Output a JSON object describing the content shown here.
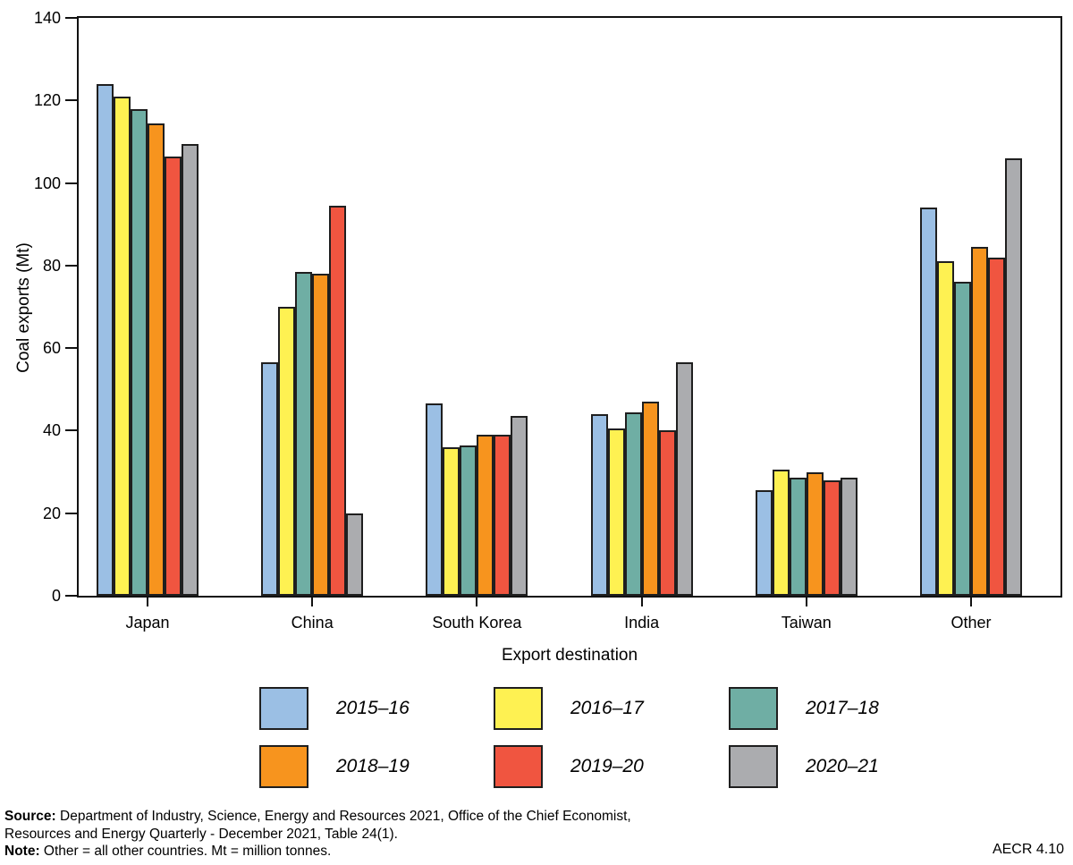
{
  "chart_data": {
    "type": "bar",
    "title": "",
    "xlabel": "Export destination",
    "ylabel": "Coal exports (Mt)",
    "ylim": [
      0,
      140
    ],
    "yticks": [
      0,
      20,
      40,
      60,
      80,
      100,
      120,
      140
    ],
    "grid": false,
    "legend_position": "bottom",
    "categories": [
      "Japan",
      "China",
      "South Korea",
      "India",
      "Taiwan",
      "Other"
    ],
    "series": [
      {
        "name": "2015–16",
        "color": "#9BBFE4",
        "values": [
          124,
          56.5,
          46.5,
          44,
          25.5,
          94
        ]
      },
      {
        "name": "2016–17",
        "color": "#FEF152",
        "values": [
          121,
          70,
          36,
          40.5,
          30.5,
          81
        ]
      },
      {
        "name": "2017–18",
        "color": "#6FAEA4",
        "values": [
          118,
          78.5,
          36.5,
          44.5,
          28.5,
          76
        ]
      },
      {
        "name": "2018–19",
        "color": "#F7941E",
        "values": [
          114.5,
          78,
          39,
          47,
          30,
          84.5
        ]
      },
      {
        "name": "2019–20",
        "color": "#F05540",
        "values": [
          106.5,
          94.5,
          39,
          40,
          28,
          82
        ]
      },
      {
        "name": "2020–21",
        "color": "#ABACAF",
        "values": [
          109.5,
          20,
          43.5,
          56.5,
          28.5,
          106
        ]
      }
    ],
    "bar_border_color": "#1f1f1f",
    "axis_color": "#111111"
  },
  "footer": {
    "source_label": "Source:",
    "source_line1": "Department of Industry, Science, Energy and Resources 2021, Office of the Chief Economist,",
    "source_line2": "Resources and Energy Quarterly - December 2021, Table 24(1).",
    "note_label": "Note:",
    "note_text": "Other = all other countries. Mt = million tonnes.",
    "figure_code": "AECR 4.10"
  }
}
